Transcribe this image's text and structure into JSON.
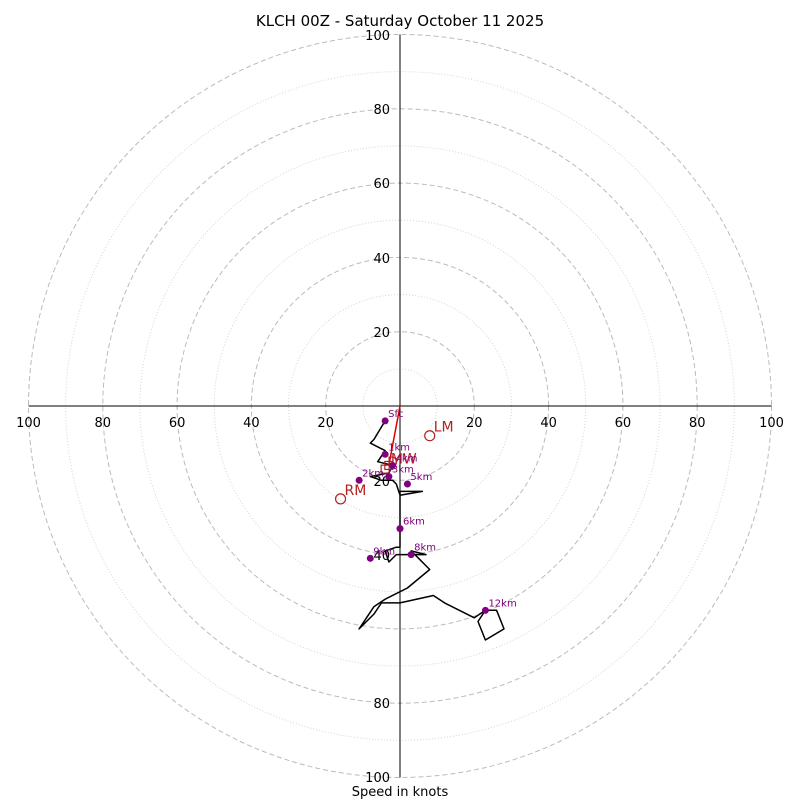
{
  "chart_data": {
    "type": "hodograph",
    "title": "KLCH 00Z - Saturday October 11 2025",
    "xlabel": "Speed in knots",
    "units": "knots",
    "max_speed": 100,
    "ring_major_step": 20,
    "ring_minor_step": 10,
    "x_tick_labels": [
      "100",
      "80",
      "60",
      "40",
      "20",
      "20",
      "40",
      "60",
      "80",
      "100"
    ],
    "y_tick_labels_top": [
      "20",
      "40",
      "60",
      "80",
      "100"
    ],
    "y_tick_labels_bottom": [
      "20",
      "40",
      "80",
      "100"
    ],
    "wind_trace": [
      [
        -4,
        -4
      ],
      [
        -7,
        -9
      ],
      [
        -8,
        -10
      ],
      [
        -4,
        -12
      ],
      [
        -6,
        -15
      ],
      [
        -2,
        -16
      ],
      [
        -3,
        -18
      ],
      [
        -8,
        -19
      ],
      [
        -5,
        -20
      ],
      [
        -2,
        -20
      ],
      [
        -1,
        -21
      ],
      [
        0,
        -24
      ],
      [
        6,
        -23
      ],
      [
        0,
        -23
      ],
      [
        0,
        -30
      ],
      [
        0,
        -34
      ],
      [
        0,
        -38
      ],
      [
        -1,
        -38
      ],
      [
        -4,
        -39
      ],
      [
        -3,
        -42
      ],
      [
        -1,
        -40
      ],
      [
        2,
        -40
      ],
      [
        5,
        -40
      ],
      [
        7,
        -40
      ],
      [
        3,
        -39
      ],
      [
        5,
        -41
      ],
      [
        8,
        -44
      ],
      [
        2,
        -49
      ],
      [
        -4,
        -52
      ],
      [
        -7,
        -54
      ],
      [
        -11,
        -60
      ],
      [
        -7,
        -56
      ],
      [
        -5,
        -53
      ],
      [
        0,
        -53
      ],
      [
        9,
        -51
      ],
      [
        12,
        -53
      ],
      [
        20,
        -57
      ],
      [
        23,
        -55
      ],
      [
        26,
        -55
      ],
      [
        28,
        -60
      ],
      [
        23,
        -63
      ],
      [
        21,
        -58
      ],
      [
        23,
        -55
      ]
    ],
    "height_markers": [
      {
        "label": "Sfc",
        "u": -4,
        "v": -4
      },
      {
        "label": "1km",
        "u": -4,
        "v": -13
      },
      {
        "label": "2km",
        "u": -11,
        "v": -20
      },
      {
        "label": "3km",
        "u": -3,
        "v": -19
      },
      {
        "label": "4km",
        "u": -2,
        "v": -16
      },
      {
        "label": "5km",
        "u": 2,
        "v": -21
      },
      {
        "label": "6km",
        "u": 0,
        "v": -33
      },
      {
        "label": "9km",
        "u": -8,
        "v": -41
      },
      {
        "label": "8km",
        "u": 3,
        "v": -40
      },
      {
        "label": "12km",
        "u": 23,
        "v": -55
      }
    ],
    "storm_motions": [
      {
        "label": "LM",
        "u": 8,
        "v": -8
      },
      {
        "label": "RM",
        "u": -16,
        "v": -25
      },
      {
        "label": "MW",
        "u": -3,
        "v": -16
      },
      {
        "label": "D",
        "u": -4,
        "v": -17
      }
    ],
    "shear_vector": {
      "from": [
        -3,
        -16
      ],
      "to": [
        0,
        0
      ]
    },
    "colors": {
      "trace": "#000000",
      "markers": "#800080",
      "motion": "#b22222",
      "shear": "#dd0000",
      "rings": "#bbbbbb"
    }
  }
}
